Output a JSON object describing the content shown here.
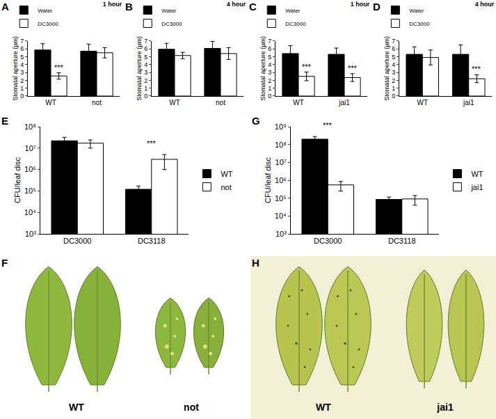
{
  "chart_data": [
    {
      "panel": "A",
      "type": "bar",
      "title": "1 hour",
      "categories": [
        "WT",
        "not"
      ],
      "series": [
        {
          "name": "Water",
          "color": "#000000",
          "values": [
            5.85,
            5.7
          ],
          "errors": [
            0.8,
            0.9
          ]
        },
        {
          "name": "DC3000",
          "color": "#ffffff",
          "values": [
            2.55,
            5.5
          ],
          "errors": [
            0.4,
            0.65
          ]
        }
      ],
      "y_label": "Stomatal aperture (µm)",
      "ylim": [
        0,
        7
      ],
      "yticks": [
        0,
        1,
        2,
        3,
        4,
        5,
        6,
        7
      ],
      "annotations": [
        {
          "text": "***",
          "category": "WT",
          "series": "DC3000"
        }
      ],
      "legend": "top"
    },
    {
      "panel": "B",
      "type": "bar",
      "title": "4 hour",
      "categories": [
        "WT",
        "not"
      ],
      "series": [
        {
          "name": "Water",
          "color": "#000000",
          "values": [
            5.95,
            6.05
          ],
          "errors": [
            0.75,
            0.9
          ]
        },
        {
          "name": "DC3000",
          "color": "#ffffff",
          "values": [
            5.15,
            5.4
          ],
          "errors": [
            0.4,
            0.75
          ]
        }
      ],
      "y_label": "Stomatal aperture (µm)",
      "ylim": [
        0,
        7
      ],
      "yticks": [
        0,
        1,
        2,
        3,
        4,
        5,
        6,
        7
      ],
      "annotations": [],
      "legend": "top"
    },
    {
      "panel": "C",
      "type": "bar",
      "title": "1 hour",
      "categories": [
        "WT",
        "jai1"
      ],
      "series": [
        {
          "name": "Water",
          "color": "#000000",
          "values": [
            5.4,
            5.3
          ],
          "errors": [
            1.0,
            0.8
          ]
        },
        {
          "name": "DC3000",
          "color": "#ffffff",
          "values": [
            2.5,
            2.35
          ],
          "errors": [
            0.55,
            0.5
          ]
        }
      ],
      "y_label": "Stomatal aperture (µm)",
      "ylim": [
        0,
        7
      ],
      "yticks": [
        0,
        1,
        2,
        3,
        4,
        5,
        6,
        7
      ],
      "annotations": [
        {
          "text": "***",
          "category": "WT",
          "series": "DC3000"
        },
        {
          "text": "***",
          "category": "jai1",
          "series": "DC3000"
        }
      ],
      "legend": "top"
    },
    {
      "panel": "D",
      "type": "bar",
      "title": "4 hour",
      "categories": [
        "WT",
        "jai1"
      ],
      "series": [
        {
          "name": "Water",
          "color": "#000000",
          "values": [
            5.3,
            5.3
          ],
          "errors": [
            0.95,
            1.2
          ]
        },
        {
          "name": "DC3000",
          "color": "#ffffff",
          "values": [
            4.9,
            2.2
          ],
          "errors": [
            0.95,
            0.5
          ]
        }
      ],
      "y_label": "Stomatal aperture (µm)",
      "ylim": [
        0,
        7
      ],
      "yticks": [
        0,
        1,
        2,
        3,
        4,
        5,
        6,
        7
      ],
      "annotations": [
        {
          "text": "***",
          "category": "jai1",
          "series": "DC3000"
        }
      ],
      "legend": "top"
    },
    {
      "panel": "E",
      "type": "bar",
      "categories": [
        "DC3000",
        "DC3118"
      ],
      "series": [
        {
          "name": "WT",
          "color": "#000000",
          "values": [
            22000000,
            120000
          ],
          "errors": [
            10000000,
            50000
          ]
        },
        {
          "name": "not",
          "color": "#ffffff",
          "values": [
            17000000,
            3000000
          ],
          "errors": [
            7000000,
            2000000
          ]
        }
      ],
      "y_label": "CFU/leaf disc",
      "log": "y",
      "ylim": [
        1000,
        100000000
      ],
      "yticks": [
        {
          "value": 1000,
          "label": "10³"
        },
        {
          "value": 10000,
          "label": "10⁴"
        },
        {
          "value": 100000,
          "label": "10⁵"
        },
        {
          "value": 1000000,
          "label": "10⁶"
        },
        {
          "value": 10000000,
          "label": "10⁷"
        },
        {
          "value": 100000000,
          "label": "10⁸"
        }
      ],
      "annotations": [
        {
          "text": "***",
          "category": "DC3118"
        }
      ],
      "legend": "right"
    },
    {
      "panel": "G",
      "type": "bar",
      "categories": [
        "DC3000",
        "DC3118"
      ],
      "series": [
        {
          "name": "WT",
          "color": "#000000",
          "values": [
            200000000,
            85000
          ],
          "errors": [
            80000000,
            30000
          ]
        },
        {
          "name": "jai1",
          "color": "#ffffff",
          "values": [
            550000,
            90000
          ],
          "errors": [
            300000,
            50000
          ]
        }
      ],
      "y_label": "CFU/leaf disc",
      "log": "y",
      "ylim": [
        1000,
        1000000000
      ],
      "yticks": [
        {
          "value": 1000,
          "label": "10³"
        },
        {
          "value": 10000,
          "label": "10⁴"
        },
        {
          "value": 100000,
          "label": "10⁵"
        },
        {
          "value": 1000000,
          "label": "10⁶"
        },
        {
          "value": 10000000,
          "label": "10⁷"
        },
        {
          "value": 100000000,
          "label": "10⁸"
        },
        {
          "value": 1000000000,
          "label": "10⁹"
        }
      ],
      "annotations": [
        {
          "text": "***",
          "category": "DC3000"
        }
      ],
      "legend": "right"
    }
  ],
  "photos": [
    {
      "panel": "F",
      "labels": [
        "WT",
        "not"
      ]
    },
    {
      "panel": "H",
      "labels": [
        "WT",
        "jai1"
      ]
    }
  ]
}
